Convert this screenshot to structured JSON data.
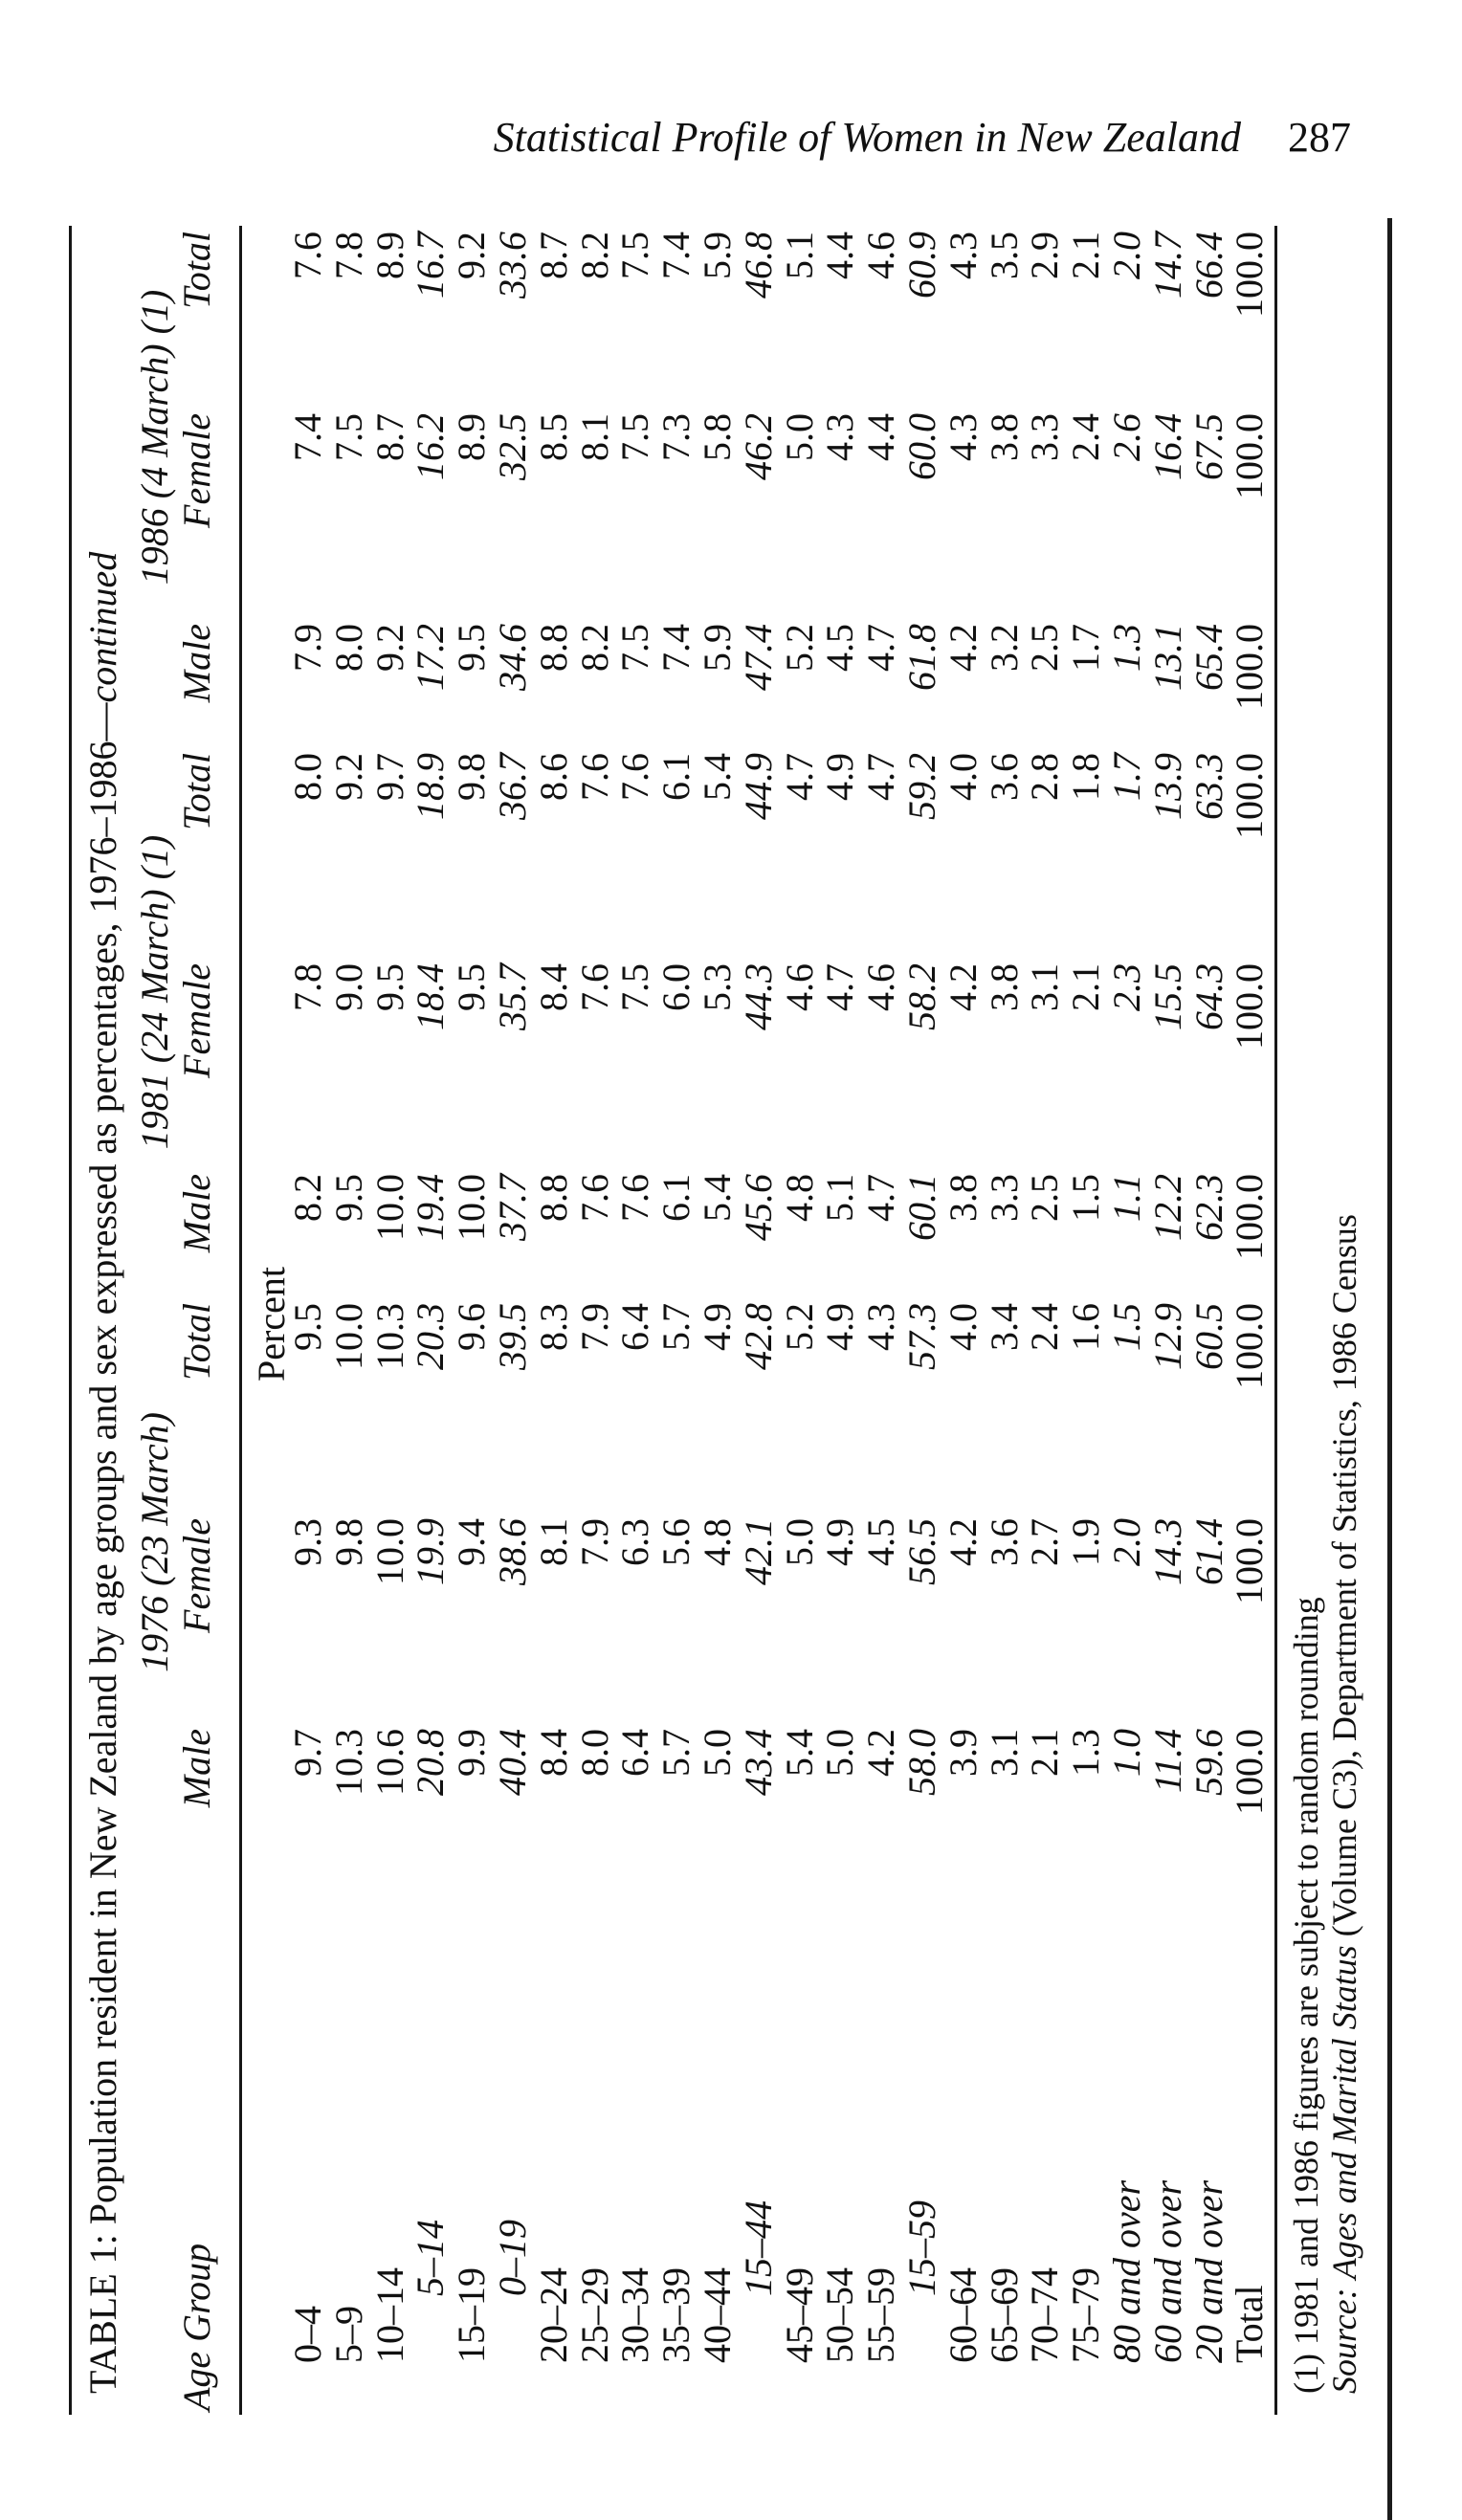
{
  "page_header": {
    "title": "Statistical Profile of Women in New Zealand",
    "page_number": "287"
  },
  "table": {
    "title_main": "TABLE 1: Population resident in New Zealand by age groups and sex expressed as percentages, 1976–1986—",
    "title_continued": "continued",
    "stub_header": "Age Group",
    "unit_label": "Percent",
    "groups": [
      {
        "label": "1976 (23 March)",
        "columns": [
          "Male",
          "Female",
          "Total"
        ]
      },
      {
        "label": "1981 (24 March) (1)",
        "columns": [
          "Male",
          "Female",
          "Total"
        ]
      },
      {
        "label": "1986 (4 March) (1)",
        "columns": [
          "Male",
          "Female",
          "Total"
        ]
      }
    ],
    "rows": [
      {
        "age": "0–4",
        "italic": false,
        "indent": false,
        "values": [
          "9.7",
          "9.3",
          "9.5",
          "8.2",
          "7.8",
          "8.0",
          "7.9",
          "7.4",
          "7.6"
        ]
      },
      {
        "age": "5–9",
        "italic": false,
        "indent": false,
        "values": [
          "10.3",
          "9.8",
          "10.0",
          "9.5",
          "9.0",
          "9.2",
          "8.0",
          "7.5",
          "7.8"
        ]
      },
      {
        "age": "10–14",
        "italic": false,
        "indent": false,
        "values": [
          "10.6",
          "10.0",
          "10.3",
          "10.0",
          "9.5",
          "9.7",
          "9.2",
          "8.7",
          "8.9"
        ]
      },
      {
        "age": "5–14",
        "italic": true,
        "indent": true,
        "values": [
          "20.8",
          "19.9",
          "20.3",
          "19.4",
          "18.4",
          "18.9",
          "17.2",
          "16.2",
          "16.7"
        ]
      },
      {
        "age": "15–19",
        "italic": false,
        "indent": false,
        "values": [
          "9.9",
          "9.4",
          "9.6",
          "10.0",
          "9.5",
          "9.8",
          "9.5",
          "8.9",
          "9.2"
        ]
      },
      {
        "age": "0–19",
        "italic": true,
        "indent": true,
        "values": [
          "40.4",
          "38.6",
          "39.5",
          "37.7",
          "35.7",
          "36.7",
          "34.6",
          "32.5",
          "33.6"
        ]
      },
      {
        "age": "20–24",
        "italic": false,
        "indent": false,
        "values": [
          "8.4",
          "8.1",
          "8.3",
          "8.8",
          "8.4",
          "8.6",
          "8.8",
          "8.5",
          "8.7"
        ]
      },
      {
        "age": "25–29",
        "italic": false,
        "indent": false,
        "values": [
          "8.0",
          "7.9",
          "7.9",
          "7.6",
          "7.6",
          "7.6",
          "8.2",
          "8.1",
          "8.2"
        ]
      },
      {
        "age": "30–34",
        "italic": false,
        "indent": false,
        "values": [
          "6.4",
          "6.3",
          "6.4",
          "7.6",
          "7.5",
          "7.6",
          "7.5",
          "7.5",
          "7.5"
        ]
      },
      {
        "age": "35–39",
        "italic": false,
        "indent": false,
        "values": [
          "5.7",
          "5.6",
          "5.7",
          "6.1",
          "6.0",
          "6.1",
          "7.4",
          "7.3",
          "7.4"
        ]
      },
      {
        "age": "40–44",
        "italic": false,
        "indent": false,
        "values": [
          "5.0",
          "4.8",
          "4.9",
          "5.4",
          "5.3",
          "5.4",
          "5.9",
          "5.8",
          "5.9"
        ]
      },
      {
        "age": "15–44",
        "italic": true,
        "indent": true,
        "values": [
          "43.4",
          "42.1",
          "42.8",
          "45.6",
          "44.3",
          "44.9",
          "47.4",
          "46.2",
          "46.8"
        ]
      },
      {
        "age": "45–49",
        "italic": false,
        "indent": false,
        "values": [
          "5.4",
          "5.0",
          "5.2",
          "4.8",
          "4.6",
          "4.7",
          "5.2",
          "5.0",
          "5.1"
        ]
      },
      {
        "age": "50–54",
        "italic": false,
        "indent": false,
        "values": [
          "5.0",
          "4.9",
          "4.9",
          "5.1",
          "4.7",
          "4.9",
          "4.5",
          "4.3",
          "4.4"
        ]
      },
      {
        "age": "55–59",
        "italic": false,
        "indent": false,
        "values": [
          "4.2",
          "4.5",
          "4.3",
          "4.7",
          "4.6",
          "4.7",
          "4.7",
          "4.4",
          "4.6"
        ]
      },
      {
        "age": "15–59",
        "italic": true,
        "indent": true,
        "values": [
          "58.0",
          "56.5",
          "57.3",
          "60.1",
          "58.2",
          "59.2",
          "61.8",
          "60.0",
          "60.9"
        ]
      },
      {
        "age": "60–64",
        "italic": false,
        "indent": false,
        "values": [
          "3.9",
          "4.2",
          "4.0",
          "3.8",
          "4.2",
          "4.0",
          "4.2",
          "4.3",
          "4.3"
        ]
      },
      {
        "age": "65–69",
        "italic": false,
        "indent": false,
        "values": [
          "3.1",
          "3.6",
          "3.4",
          "3.3",
          "3.8",
          "3.6",
          "3.2",
          "3.8",
          "3.5"
        ]
      },
      {
        "age": "70–74",
        "italic": false,
        "indent": false,
        "values": [
          "2.1",
          "2.7",
          "2.4",
          "2.5",
          "3.1",
          "2.8",
          "2.5",
          "3.3",
          "2.9"
        ]
      },
      {
        "age": "75–79",
        "italic": false,
        "indent": false,
        "values": [
          "1.3",
          "1.9",
          "1.6",
          "1.5",
          "2.1",
          "1.8",
          "1.7",
          "2.4",
          "2.1"
        ]
      },
      {
        "age": "80 and over",
        "italic": true,
        "indent": false,
        "values": [
          "1.0",
          "2.0",
          "1.5",
          "1.1",
          "2.3",
          "1.7",
          "1.3",
          "2.6",
          "2.0"
        ]
      },
      {
        "age": "60 and over",
        "italic": true,
        "indent": false,
        "values": [
          "11.4",
          "14.3",
          "12.9",
          "12.2",
          "15.5",
          "13.9",
          "13.1",
          "16.4",
          "14.7"
        ]
      },
      {
        "age": "20 and over",
        "italic": true,
        "indent": false,
        "values": [
          "59.6",
          "61.4",
          "60.5",
          "62.3",
          "64.3",
          "63.3",
          "65.4",
          "67.5",
          "66.4"
        ]
      },
      {
        "age": "Total",
        "italic": false,
        "indent": false,
        "values": [
          "100.0",
          "100.0",
          "100.0",
          "100.0",
          "100.0",
          "100.0",
          "100.0",
          "100.0",
          "100.0"
        ]
      }
    ],
    "footnote": "(1) 1981 and 1986 figures are subject to random rounding",
    "source_prefix": "Source:",
    "source_title": "Ages and Marital Status",
    "source_rest": " (Volume C3), Department of Statistics, 1986 Census"
  }
}
